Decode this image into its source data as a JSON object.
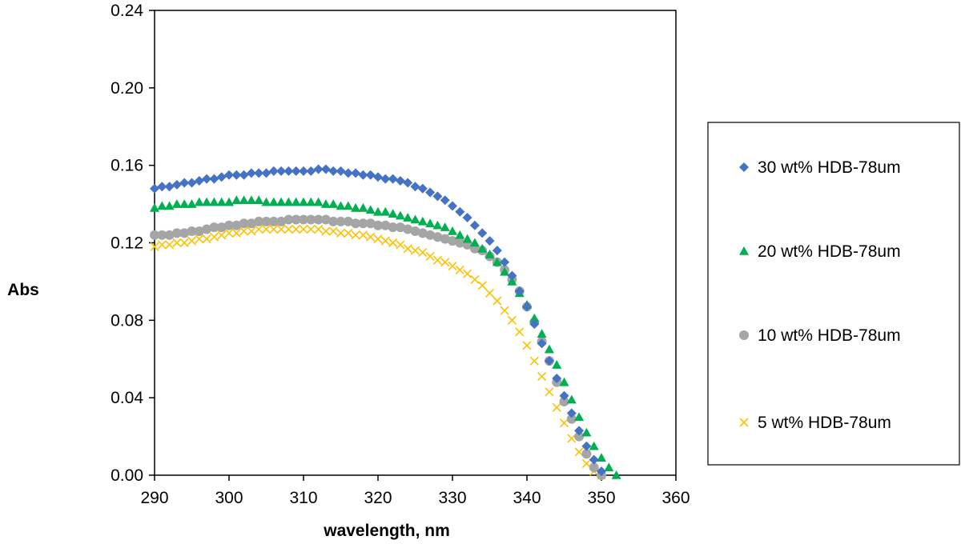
{
  "chart_data": {
    "type": "scatter",
    "xlabel": "wavelength, nm",
    "ylabel": "Abs",
    "xlim": [
      290,
      360
    ],
    "ylim": [
      0,
      0.24
    ],
    "xticks": [
      "290",
      "300",
      "310",
      "320",
      "330",
      "340",
      "350",
      "360"
    ],
    "yticks": [
      "0.00",
      "0.04",
      "0.08",
      "0.12",
      "0.16",
      "0.20",
      "0.24"
    ],
    "grid": false,
    "legend_position": "right",
    "series": [
      {
        "name": "30 wt% HDB-78um",
        "marker": "diamond",
        "color": "#4472C4",
        "x": [
          290,
          291,
          292,
          293,
          294,
          295,
          296,
          297,
          298,
          299,
          300,
          301,
          302,
          303,
          304,
          305,
          306,
          307,
          308,
          309,
          310,
          311,
          312,
          313,
          314,
          315,
          316,
          317,
          318,
          319,
          320,
          321,
          322,
          323,
          324,
          325,
          326,
          327,
          328,
          329,
          330,
          331,
          332,
          333,
          334,
          335,
          336,
          337,
          338,
          339,
          340,
          341,
          342,
          343,
          344,
          345,
          346,
          347,
          348,
          349,
          350
        ],
        "y": [
          0.148,
          0.149,
          0.149,
          0.15,
          0.151,
          0.151,
          0.152,
          0.153,
          0.153,
          0.154,
          0.155,
          0.155,
          0.155,
          0.156,
          0.156,
          0.156,
          0.157,
          0.157,
          0.157,
          0.157,
          0.157,
          0.157,
          0.158,
          0.158,
          0.157,
          0.157,
          0.156,
          0.156,
          0.155,
          0.155,
          0.154,
          0.153,
          0.153,
          0.152,
          0.151,
          0.149,
          0.148,
          0.146,
          0.144,
          0.142,
          0.139,
          0.136,
          0.133,
          0.129,
          0.125,
          0.121,
          0.116,
          0.11,
          0.103,
          0.095,
          0.087,
          0.078,
          0.068,
          0.059,
          0.05,
          0.041,
          0.032,
          0.023,
          0.015,
          0.008,
          0.002
        ]
      },
      {
        "name": "20 wt% HDB-78um",
        "marker": "triangle",
        "color": "#00B050",
        "x": [
          290,
          291,
          292,
          293,
          294,
          295,
          296,
          297,
          298,
          299,
          300,
          301,
          302,
          303,
          304,
          305,
          306,
          307,
          308,
          309,
          310,
          311,
          312,
          313,
          314,
          315,
          316,
          317,
          318,
          319,
          320,
          321,
          322,
          323,
          324,
          325,
          326,
          327,
          328,
          329,
          330,
          331,
          332,
          333,
          334,
          335,
          336,
          337,
          338,
          339,
          340,
          341,
          342,
          343,
          344,
          345,
          346,
          347,
          348,
          349,
          350,
          351,
          352
        ],
        "y": [
          0.138,
          0.139,
          0.139,
          0.14,
          0.14,
          0.14,
          0.141,
          0.141,
          0.141,
          0.141,
          0.141,
          0.142,
          0.142,
          0.142,
          0.142,
          0.141,
          0.141,
          0.141,
          0.141,
          0.141,
          0.141,
          0.141,
          0.141,
          0.14,
          0.14,
          0.139,
          0.139,
          0.138,
          0.138,
          0.137,
          0.136,
          0.136,
          0.135,
          0.134,
          0.133,
          0.132,
          0.131,
          0.13,
          0.129,
          0.128,
          0.126,
          0.124,
          0.122,
          0.12,
          0.117,
          0.114,
          0.11,
          0.105,
          0.1,
          0.094,
          0.088,
          0.081,
          0.073,
          0.065,
          0.057,
          0.048,
          0.039,
          0.03,
          0.022,
          0.015,
          0.009,
          0.004,
          0.0
        ]
      },
      {
        "name": "10 wt% HDB-78um",
        "marker": "circle",
        "color": "#A5A5A5",
        "x": [
          290,
          291,
          292,
          293,
          294,
          295,
          296,
          297,
          298,
          299,
          300,
          301,
          302,
          303,
          304,
          305,
          306,
          307,
          308,
          309,
          310,
          311,
          312,
          313,
          314,
          315,
          316,
          317,
          318,
          319,
          320,
          321,
          322,
          323,
          324,
          325,
          326,
          327,
          328,
          329,
          330,
          331,
          332,
          333,
          334,
          335,
          336,
          337,
          338,
          339,
          340,
          341,
          342,
          343,
          344,
          345,
          346,
          347,
          348,
          349,
          350
        ],
        "y": [
          0.124,
          0.124,
          0.124,
          0.125,
          0.125,
          0.126,
          0.126,
          0.127,
          0.128,
          0.128,
          0.129,
          0.129,
          0.13,
          0.13,
          0.131,
          0.131,
          0.131,
          0.131,
          0.132,
          0.132,
          0.132,
          0.132,
          0.132,
          0.132,
          0.131,
          0.131,
          0.131,
          0.13,
          0.13,
          0.13,
          0.129,
          0.129,
          0.128,
          0.128,
          0.127,
          0.126,
          0.125,
          0.124,
          0.123,
          0.122,
          0.121,
          0.12,
          0.119,
          0.117,
          0.116,
          0.113,
          0.11,
          0.106,
          0.101,
          0.095,
          0.087,
          0.079,
          0.069,
          0.059,
          0.048,
          0.038,
          0.029,
          0.02,
          0.011,
          0.004,
          0.0
        ]
      },
      {
        "name": "5 wt% HDB-78um",
        "marker": "x",
        "color": "#FFC000",
        "x": [
          290,
          291,
          292,
          293,
          294,
          295,
          296,
          297,
          298,
          299,
          300,
          301,
          302,
          303,
          304,
          305,
          306,
          307,
          308,
          309,
          310,
          311,
          312,
          313,
          314,
          315,
          316,
          317,
          318,
          319,
          320,
          321,
          322,
          323,
          324,
          325,
          326,
          327,
          328,
          329,
          330,
          331,
          332,
          333,
          334,
          335,
          336,
          337,
          338,
          339,
          340,
          341,
          342,
          343,
          344,
          345,
          346,
          347,
          348,
          349,
          350
        ],
        "y": [
          0.118,
          0.119,
          0.119,
          0.12,
          0.12,
          0.121,
          0.122,
          0.122,
          0.123,
          0.124,
          0.125,
          0.125,
          0.126,
          0.126,
          0.127,
          0.127,
          0.127,
          0.127,
          0.127,
          0.127,
          0.127,
          0.127,
          0.127,
          0.126,
          0.126,
          0.125,
          0.125,
          0.124,
          0.124,
          0.123,
          0.122,
          0.121,
          0.12,
          0.119,
          0.117,
          0.116,
          0.115,
          0.113,
          0.111,
          0.11,
          0.108,
          0.106,
          0.104,
          0.101,
          0.098,
          0.094,
          0.09,
          0.085,
          0.08,
          0.074,
          0.067,
          0.059,
          0.051,
          0.043,
          0.035,
          0.027,
          0.019,
          0.012,
          0.006,
          0.002,
          0.0
        ]
      }
    ]
  }
}
